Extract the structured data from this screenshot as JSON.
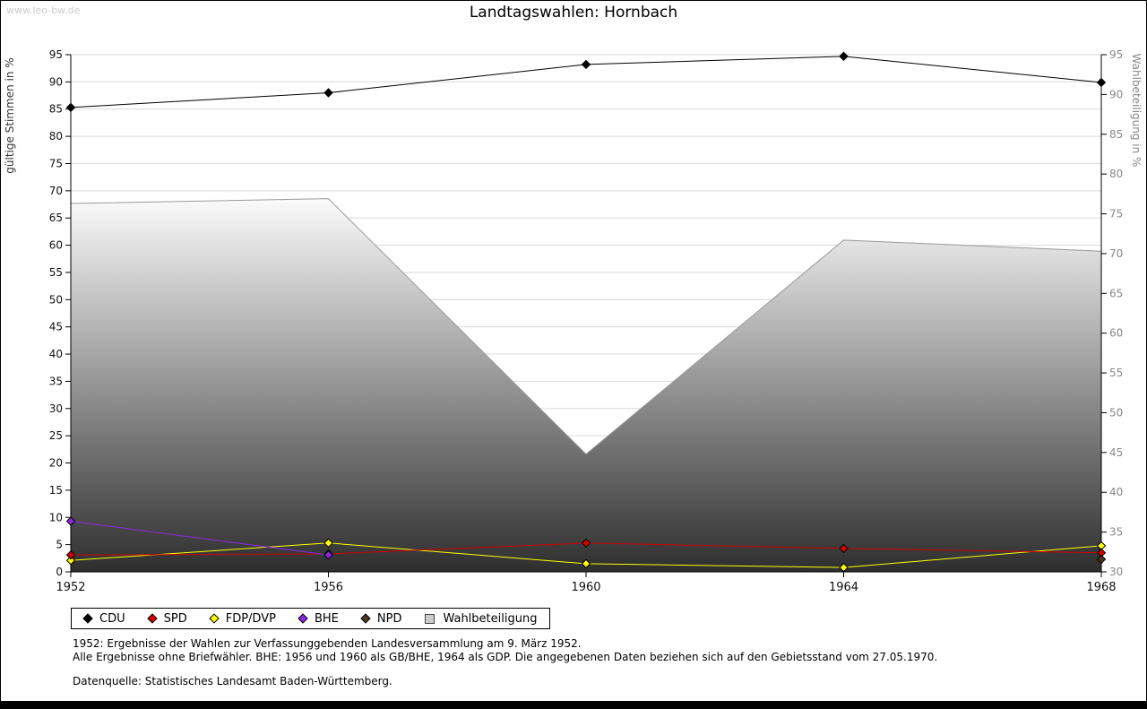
{
  "page": {
    "watermark": "www.leo-bw.de",
    "title": "Landtagswahlen: Hornbach"
  },
  "chart_data": {
    "type": "line",
    "x": [
      1952,
      1956,
      1960,
      1964,
      1968
    ],
    "left_axis": {
      "label": "gültige Stimmen in %",
      "min": 0,
      "max": 95,
      "step": 5
    },
    "right_axis": {
      "label": "Wahlbeteiligung in %",
      "min": 30,
      "max": 95,
      "step": 5
    },
    "grid": "horizontal",
    "series": [
      {
        "name": "Wahlbeteiligung",
        "type": "area",
        "axis": "right",
        "color": "#9a9a9a",
        "fill_top": "#fbfbfb",
        "fill_bottom": "#2e2e2e",
        "values": [
          76.3,
          76.9,
          44.8,
          71.7,
          70.3
        ]
      },
      {
        "name": "FDP/DVP",
        "type": "line",
        "axis": "left",
        "color": "#ffff00",
        "values": [
          2.1,
          5.3,
          1.5,
          0.8,
          4.8
        ]
      },
      {
        "name": "SPD",
        "type": "line",
        "axis": "left",
        "color": "#d40000",
        "values": [
          3.1,
          3.3,
          5.3,
          4.3,
          3.5
        ]
      },
      {
        "name": "BHE",
        "type": "line",
        "axis": "left",
        "color": "#8a2be2",
        "values": [
          9.3,
          3.1,
          null,
          null,
          null
        ]
      },
      {
        "name": "NPD",
        "type": "line",
        "axis": "left",
        "color": "#4d3a26",
        "values": [
          null,
          null,
          null,
          null,
          2.3
        ]
      },
      {
        "name": "CDU",
        "type": "line",
        "axis": "left",
        "color": "#000000",
        "values": [
          85.3,
          88.0,
          93.2,
          94.7,
          89.9
        ]
      }
    ]
  },
  "legend": {
    "items": [
      {
        "label": "CDU",
        "color": "#000000",
        "shape": "diamond"
      },
      {
        "label": "SPD",
        "color": "#d40000",
        "shape": "diamond"
      },
      {
        "label": "FDP/DVP",
        "color": "#ffff00",
        "shape": "diamond"
      },
      {
        "label": "BHE",
        "color": "#8a2be2",
        "shape": "diamond"
      },
      {
        "label": "NPD",
        "color": "#4d3a26",
        "shape": "diamond"
      },
      {
        "label": "Wahlbeteiligung",
        "color": "#cccccc",
        "shape": "square"
      }
    ]
  },
  "footnotes": {
    "line1": "1952: Ergebnisse der Wahlen zur Verfassunggebenden Landesversammlung am 9. März 1952.",
    "line2": "Alle Ergebnisse ohne Briefwähler. BHE: 1956 und 1960 als GB/BHE, 1964 als GDP. Die angegebenen Daten beziehen sich auf den Gebietsstand vom 27.05.1970.",
    "line3": "Datenquelle: Statistisches Landesamt Baden-Württemberg."
  }
}
